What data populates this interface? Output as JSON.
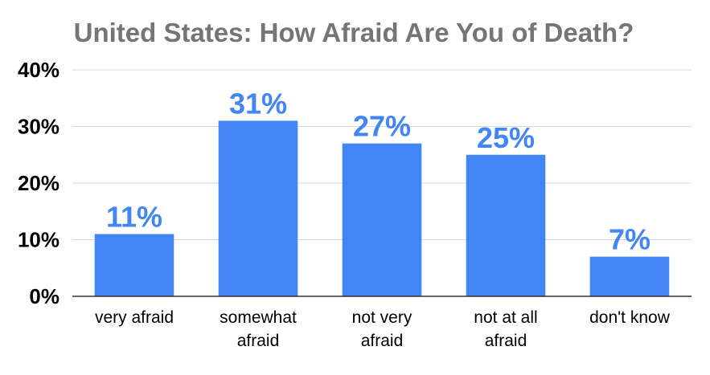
{
  "chart_data": {
    "type": "bar",
    "title": "United States: How Afraid Are You of Death?",
    "xlabel": "",
    "ylabel": "",
    "categories": [
      [
        "very afraid"
      ],
      [
        "somewhat",
        "afraid"
      ],
      [
        "not very",
        "afraid"
      ],
      [
        "not at all",
        "afraid"
      ],
      [
        "don't know"
      ]
    ],
    "values": [
      11,
      31,
      27,
      25,
      7
    ],
    "data_labels": [
      "11%",
      "31%",
      "27%",
      "25%",
      "7%"
    ],
    "ylim": [
      0,
      40
    ],
    "yticks": [
      0,
      10,
      20,
      30,
      40
    ],
    "ytick_labels": [
      "0%",
      "10%",
      "20%",
      "30%",
      "40%"
    ],
    "grid": true,
    "legend": "none",
    "colors": {
      "bar": "#4285f4",
      "data_label": "#4285f4",
      "title": "#757575"
    }
  }
}
